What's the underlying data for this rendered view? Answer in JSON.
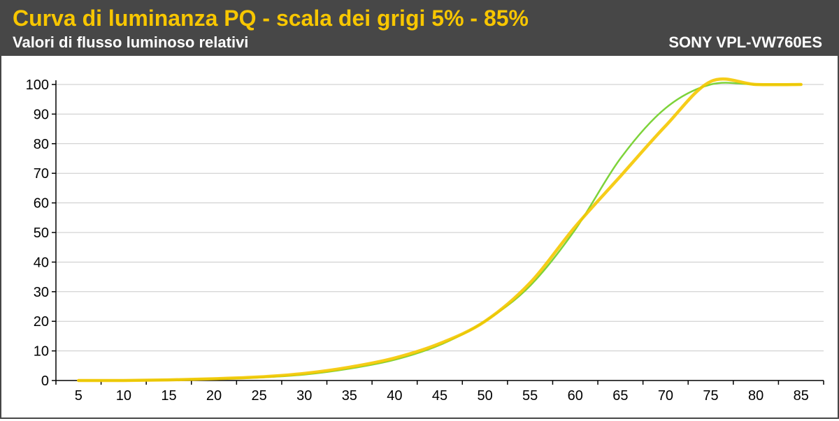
{
  "header": {
    "title": "Curva di luminanza PQ - scala dei grigi 5% - 85%",
    "subtitle": "Valori di flusso luminoso relativi",
    "model": "SONY VPL-VW760ES"
  },
  "colors": {
    "header_bg": "#474747",
    "title": "#f7c600",
    "reference_curve": "#7dd33a",
    "measured_curve": "#f5c800",
    "grid": "#c8c8c8"
  },
  "chart_data": {
    "type": "line",
    "title": "Curva di luminanza PQ - scala dei grigi 5% - 85%",
    "subtitle": "Valori di flusso luminoso relativi",
    "x": [
      5,
      10,
      15,
      20,
      25,
      30,
      35,
      40,
      45,
      50,
      55,
      60,
      65,
      70,
      75,
      80,
      85
    ],
    "x_ticks": [
      "5",
      "10",
      "15",
      "20",
      "25",
      "30",
      "35",
      "40",
      "45",
      "50",
      "55",
      "60",
      "65",
      "70",
      "75",
      "80",
      "85"
    ],
    "y_ticks": [
      "0",
      "10",
      "20",
      "30",
      "40",
      "50",
      "60",
      "70",
      "80",
      "90",
      "100"
    ],
    "ylim": [
      0,
      100
    ],
    "xlim": [
      5,
      85
    ],
    "grid": "horizontal",
    "legend": "none",
    "series": [
      {
        "color": "#7dd33a",
        "values": [
          0,
          0,
          0.2,
          0.5,
          1,
          2,
          4,
          7,
          12,
          20,
          32,
          51,
          75,
          92,
          100,
          100,
          100
        ]
      },
      {
        "color": "#f5c800",
        "values": [
          0,
          0,
          0.2,
          0.6,
          1.2,
          2.4,
          4.5,
          7.6,
          12.5,
          20,
          33,
          52,
          69,
          86,
          101,
          100,
          100
        ]
      }
    ]
  }
}
